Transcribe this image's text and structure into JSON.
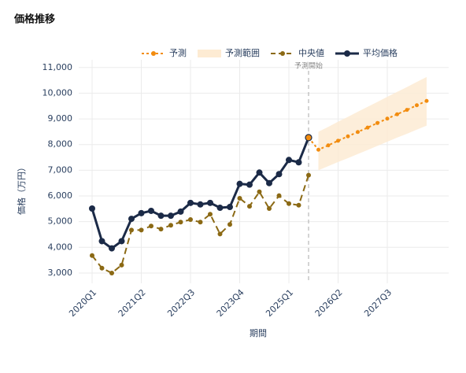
{
  "chart_data": {
    "type": "line",
    "title": "価格推移",
    "x_label": "期間",
    "y_label": "価格（万円）",
    "annotation": "予測開始",
    "categories": [
      "2020Q1",
      null,
      null,
      null,
      null,
      "2021Q2",
      null,
      null,
      null,
      null,
      "2022Q3",
      null,
      null,
      null,
      null,
      "2023Q4",
      null,
      null,
      null,
      null,
      "2025Q1",
      null,
      null,
      null,
      null,
      "2026Q2",
      null,
      null,
      null,
      null,
      "2027Q3",
      null,
      null,
      null,
      null
    ],
    "ylim": [
      2600,
      11300
    ],
    "yticks": [
      {
        "value": 3000,
        "label": "3,000"
      },
      {
        "value": 4000,
        "label": "4,000"
      },
      {
        "value": 5000,
        "label": "5,000"
      },
      {
        "value": 6000,
        "label": "6,000"
      },
      {
        "value": 7000,
        "label": "7,000"
      },
      {
        "value": 8000,
        "label": "8,000"
      },
      {
        "value": 9000,
        "label": "9,000"
      },
      {
        "value": 10000,
        "label": "10,000"
      },
      {
        "value": 11000,
        "label": "11,000"
      }
    ],
    "grid": true,
    "series": [
      {
        "name": "予測",
        "color": "#f28c0f",
        "style": "dotted",
        "values": [
          null,
          null,
          null,
          null,
          null,
          null,
          null,
          null,
          null,
          null,
          null,
          null,
          null,
          null,
          null,
          null,
          null,
          null,
          null,
          null,
          null,
          null,
          8270,
          7800,
          7970,
          8150,
          8320,
          8490,
          8660,
          8840,
          9010,
          9180,
          9350,
          9530,
          9700
        ]
      },
      {
        "name": "予測範囲",
        "color": "#fdebd3",
        "style": "band",
        "upper": [
          null,
          null,
          null,
          null,
          null,
          null,
          null,
          null,
          null,
          null,
          null,
          null,
          null,
          null,
          null,
          null,
          null,
          null,
          null,
          null,
          null,
          null,
          null,
          8500,
          8690,
          8890,
          9080,
          9280,
          9470,
          9660,
          9860,
          10050,
          10240,
          10440,
          10630
        ],
        "lower": [
          null,
          null,
          null,
          null,
          null,
          null,
          null,
          null,
          null,
          null,
          null,
          null,
          null,
          null,
          null,
          null,
          null,
          null,
          null,
          null,
          null,
          null,
          null,
          7000,
          7160,
          7320,
          7470,
          7630,
          7790,
          7950,
          8110,
          8270,
          8420,
          8580,
          8740
        ]
      },
      {
        "name": "中央値",
        "color": "#8b6914",
        "style": "dashed",
        "values": [
          3680,
          3190,
          3000,
          3310,
          4670,
          4670,
          4830,
          4710,
          4860,
          4980,
          5080,
          4980,
          5290,
          4520,
          4890,
          5910,
          5600,
          6160,
          5510,
          6010,
          5700,
          5640,
          6810,
          null,
          null,
          null,
          null,
          null,
          null,
          null,
          null,
          null,
          null,
          null,
          null
        ]
      },
      {
        "name": "平均価格",
        "color": "#1b2a47",
        "style": "solid",
        "values": [
          5510,
          4240,
          3960,
          4240,
          5110,
          5330,
          5420,
          5230,
          5230,
          5390,
          5730,
          5670,
          5730,
          5540,
          5570,
          6470,
          6440,
          6910,
          6500,
          6850,
          7400,
          7310,
          8270,
          null,
          null,
          null,
          null,
          null,
          null,
          null,
          null,
          null,
          null,
          null,
          null
        ]
      }
    ]
  }
}
